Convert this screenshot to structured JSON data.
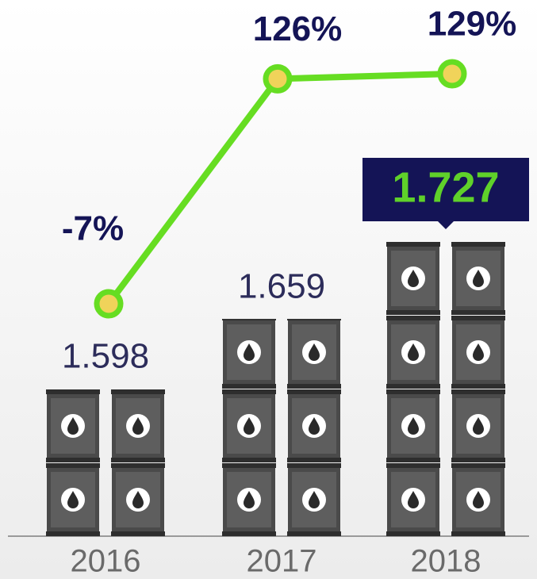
{
  "chart_data": [
    {
      "type": "bar",
      "categories": [
        "2016",
        "2017",
        "2018"
      ],
      "values": [
        1.598,
        1.659,
        1.727
      ],
      "color": "#4a4a4a",
      "label_color": "#2c2c5a",
      "highlight_color": "#141456",
      "highlight_text_color": "#5fd12a"
    },
    {
      "type": "line",
      "categories": [
        "2016",
        "2017",
        "2018"
      ],
      "values": [
        -7,
        126,
        129
      ],
      "value_labels": [
        "-7%",
        "126%",
        "129%"
      ],
      "color": "#66dd22",
      "marker_color": "#f0d35a",
      "label_color": "#141456"
    }
  ]
}
